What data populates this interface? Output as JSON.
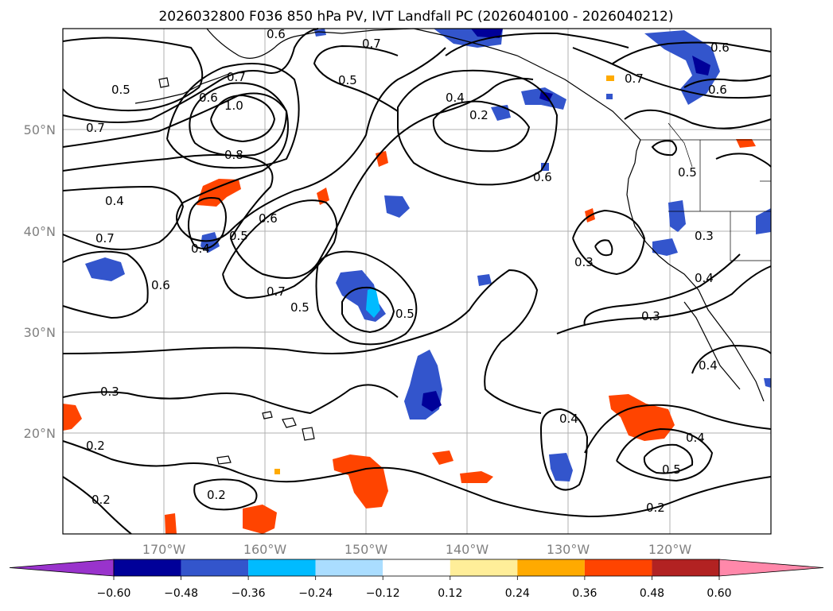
{
  "title": "2026032800 F036 850 hPa PV, IVT Landfall PC (2026040100 - 2026040212)",
  "lat_labels": [
    "50°N",
    "40°N",
    "30°N",
    "20°N"
  ],
  "lon_labels": [
    "170°W",
    "160°W",
    "150°W",
    "140°W",
    "130°W",
    "120°W"
  ],
  "colorbar": {
    "ticks": [
      "−0.60",
      "−0.48",
      "−0.36",
      "−0.24",
      "−0.12",
      "0.12",
      "0.24",
      "0.36",
      "0.48",
      "0.60"
    ],
    "colors": [
      "#9933cc",
      "#000099",
      "#3355cc",
      "#00bbff",
      "#aaddff",
      "#ffffff",
      "#ffee99",
      "#ffaa00",
      "#ff4400",
      "#b22222",
      "#ff88aa"
    ]
  },
  "contour_labels": {
    "c1": "0.6",
    "c2": "0.7",
    "c3": "0.5",
    "c4": "0.7",
    "c5": "0.6",
    "c6": "0.5",
    "c7": "1.0",
    "c8": "0.7",
    "c9": "0.8",
    "c10": "0.4",
    "c11": "0.2",
    "c12": "0.6",
    "c13": "0.7",
    "c14": "0.6",
    "c15": "0.6",
    "c16": "0.5",
    "c17": "0.4",
    "c18": "0.7",
    "c19": "0.4",
    "c20": "0.5",
    "c21": "0.6",
    "c22": "0.7",
    "c23": "0.5",
    "c24": "0.5",
    "c25": "0.3",
    "c26": "0.3",
    "c27": "0.4",
    "c28": "0.3",
    "c29": "0.4",
    "c30": "0.3",
    "c31": "0.2",
    "c32": "0.4",
    "c33": "0.4",
    "c34": "0.5",
    "c35": "0.2",
    "c36": "0.2",
    "c37": "0.2",
    "c38": "0.6"
  }
}
